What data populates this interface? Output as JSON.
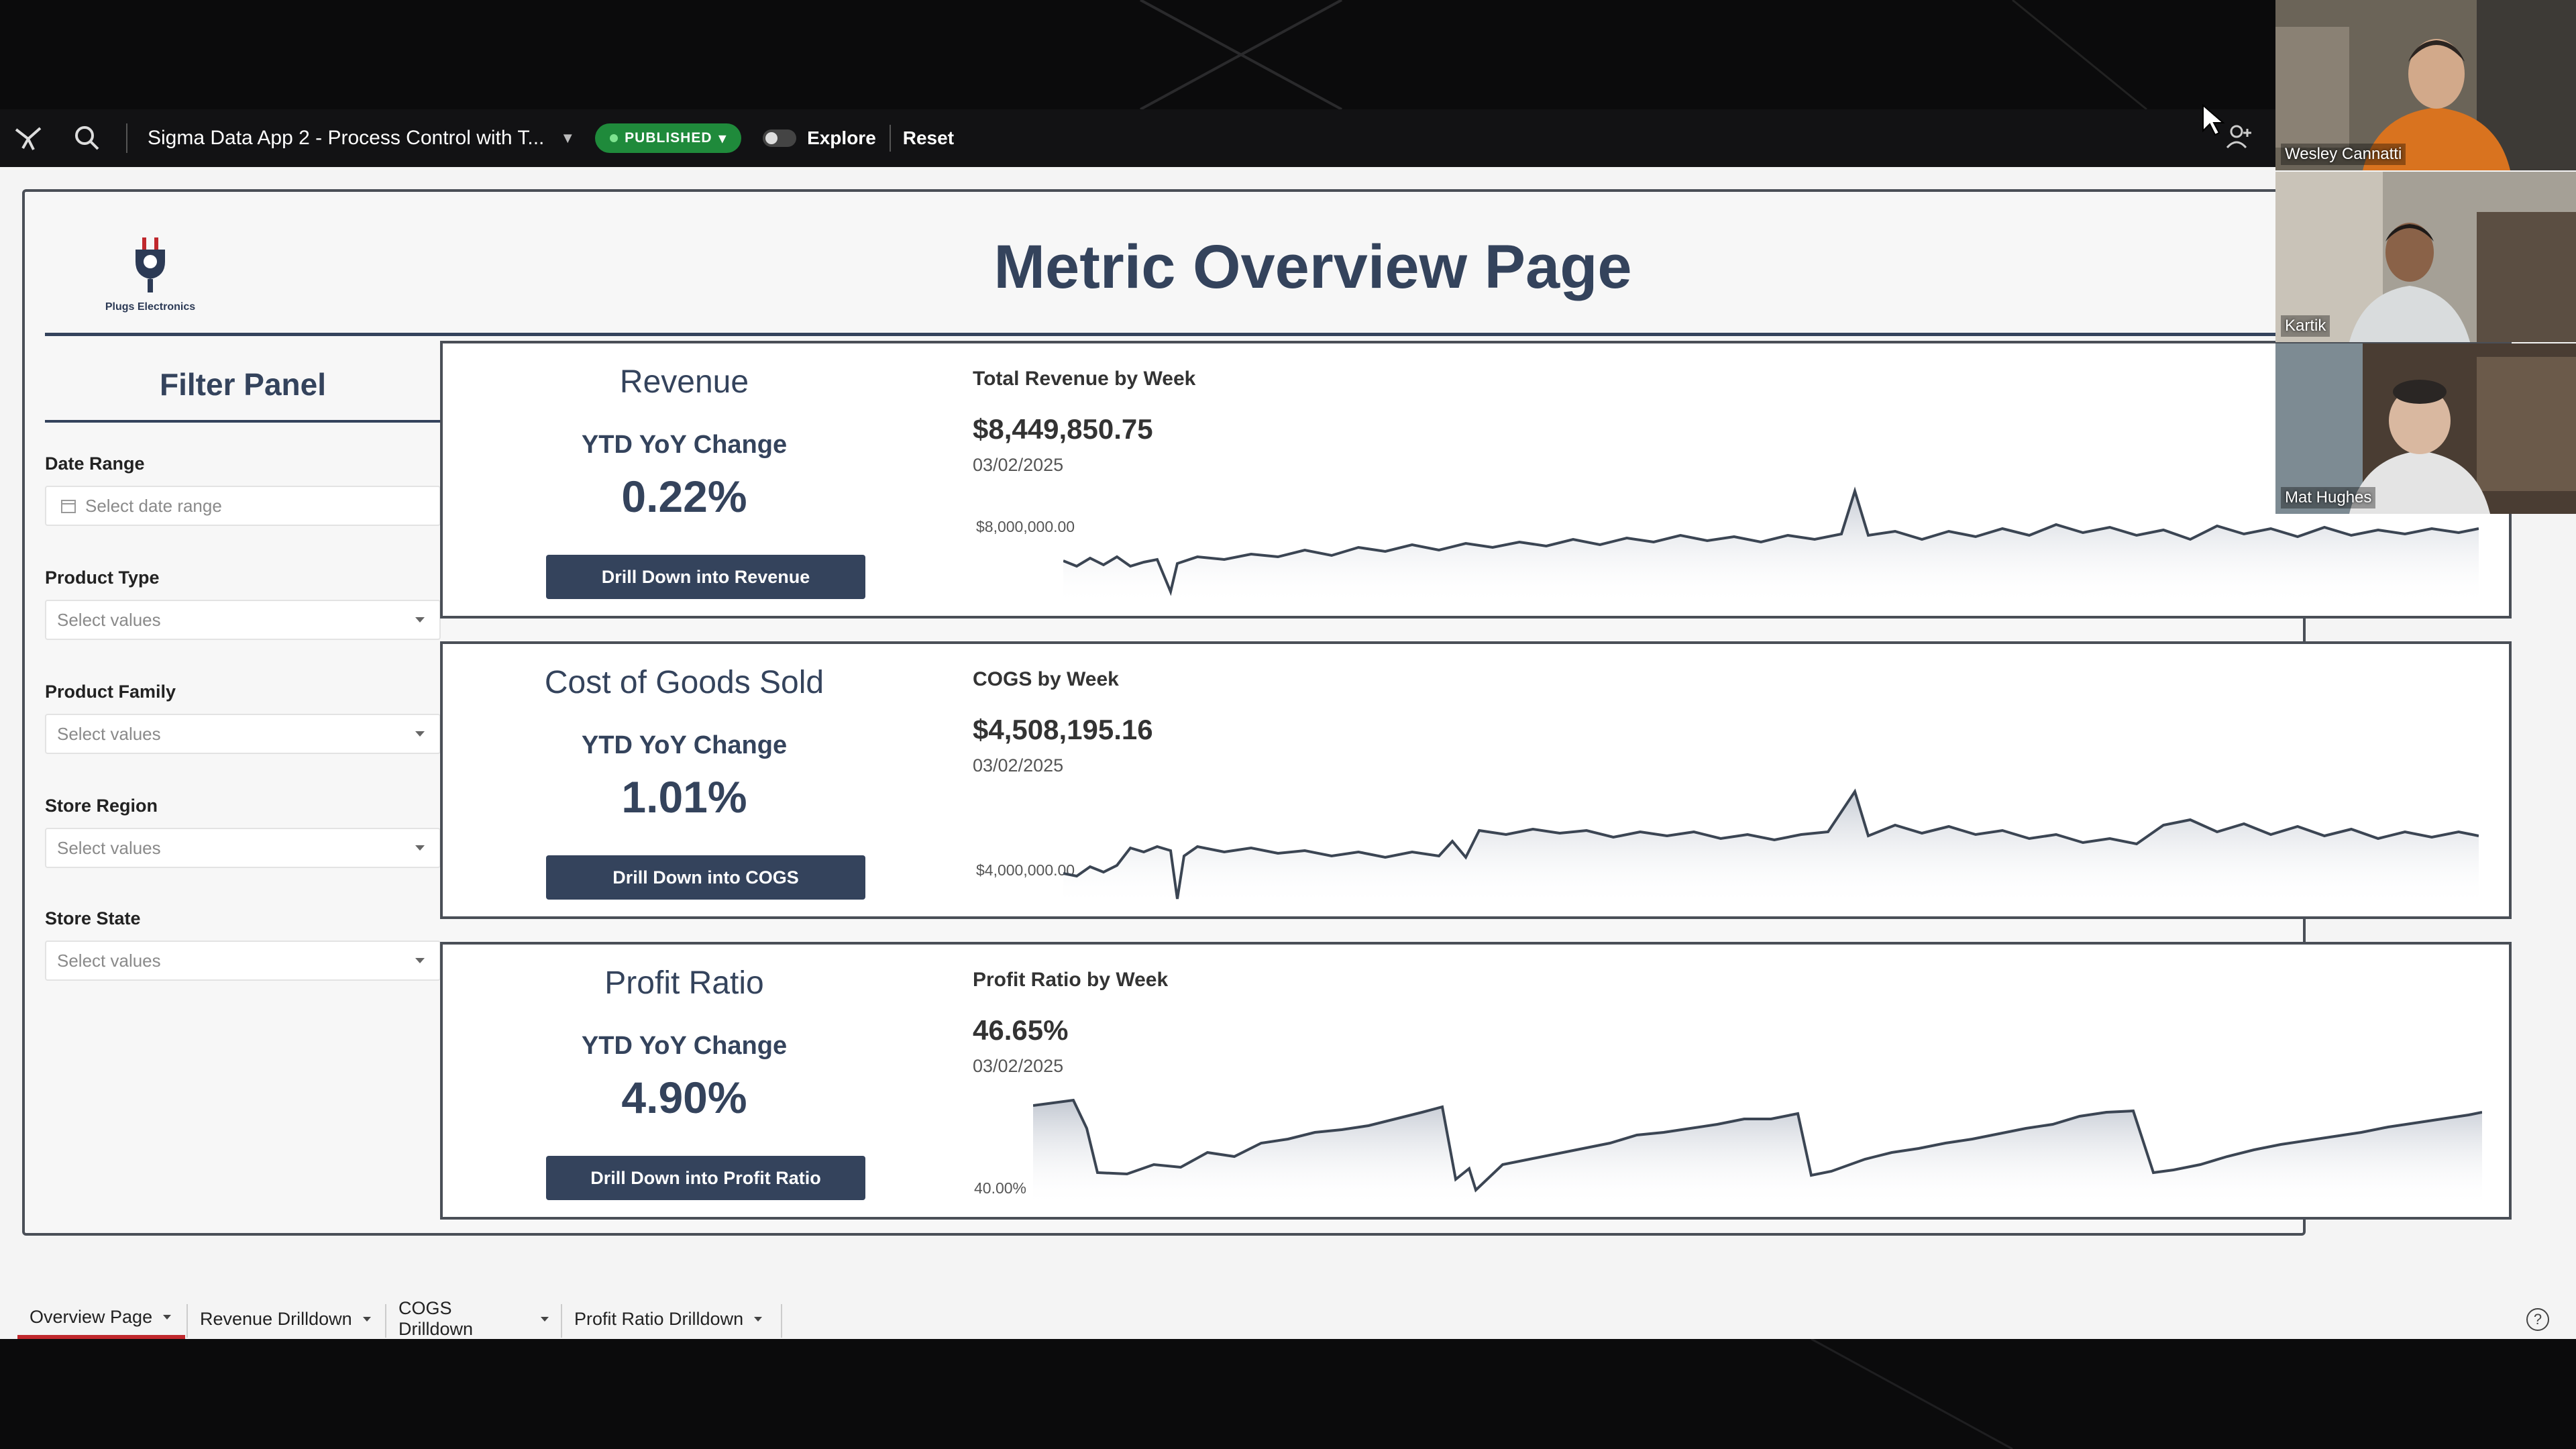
{
  "app": {
    "title": "Sigma Data App 2 - Process Control with T...",
    "status": "PUBLISHED",
    "explore_label": "Explore",
    "reset_label": "Reset"
  },
  "page": {
    "title": "Metric Overview Page",
    "brand_name": "Plugs Electronics"
  },
  "filters": {
    "title": "Filter Panel",
    "date_range": {
      "label": "Date Range",
      "placeholder": "Select date range"
    },
    "product_type": {
      "label": "Product Type",
      "placeholder": "Select values"
    },
    "product_family": {
      "label": "Product Family",
      "placeholder": "Select values"
    },
    "store_region": {
      "label": "Store Region",
      "placeholder": "Select values"
    },
    "store_state": {
      "label": "Store State",
      "placeholder": "Select values"
    }
  },
  "metrics": [
    {
      "name": "Revenue",
      "ytd_label": "YTD YoY Change",
      "ytd_value": "0.22%",
      "button": "Drill Down into Revenue",
      "chart_title": "Total Revenue by Week",
      "chart_value": "$8,449,850.75",
      "chart_date": "03/02/2025",
      "y_label": "$8,000,000.00"
    },
    {
      "name": "Cost of Goods Sold",
      "ytd_label": "YTD YoY Change",
      "ytd_value": "1.01%",
      "button": "Drill Down into COGS",
      "chart_title": "COGS by Week",
      "chart_value": "$4,508,195.16",
      "chart_date": "03/02/2025",
      "y_label": "$4,000,000.00"
    },
    {
      "name": "Profit Ratio",
      "ytd_label": "YTD YoY Change",
      "ytd_value": "4.90%",
      "button": "Drill Down into Profit Ratio",
      "chart_title": "Profit Ratio by Week",
      "chart_value": "46.65%",
      "chart_date": "03/02/2025",
      "y_label": "40.00%"
    }
  ],
  "tabs": [
    {
      "label": "Overview Page",
      "active": true
    },
    {
      "label": "Revenue Drilldown",
      "active": false
    },
    {
      "label": "COGS Drilldown",
      "active": false
    },
    {
      "label": "Profit Ratio Drilldown",
      "active": false
    }
  ],
  "participants": [
    {
      "name": "Wesley Cannatti"
    },
    {
      "name": "Kartik"
    },
    {
      "name": "Mat Hughes"
    }
  ],
  "colors": {
    "navy": "#34435c",
    "published_green": "#1f8a3b",
    "active_tab": "#c0282d"
  }
}
